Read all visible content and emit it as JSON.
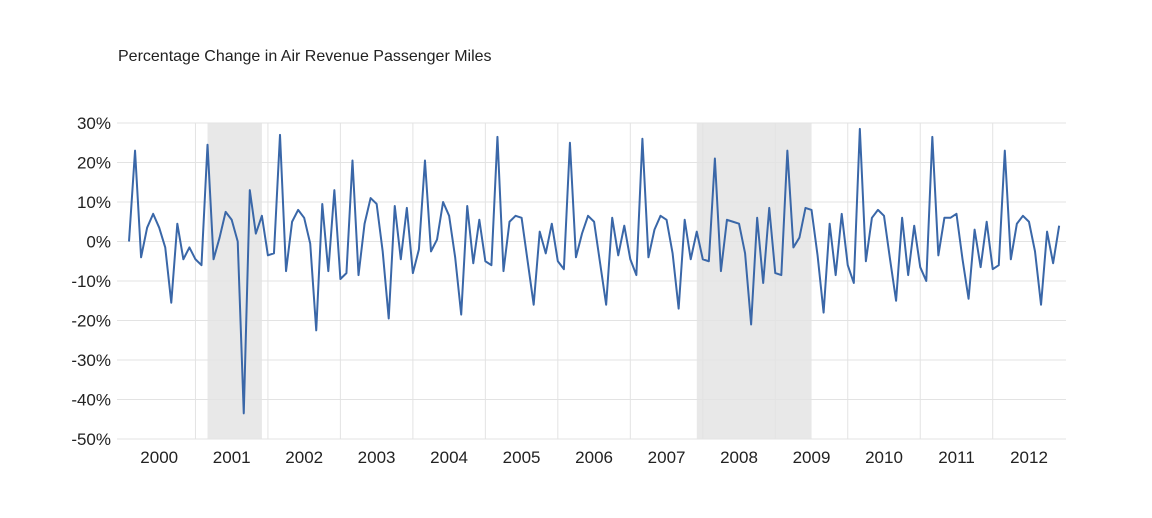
{
  "chart_data": {
    "type": "line",
    "title": "Percentage Change in Air Revenue Passenger Miles",
    "xlabel": "",
    "ylabel": "",
    "ylim": [
      -50,
      30
    ],
    "yticks": [
      "30%",
      "20%",
      "10%",
      "0%",
      "-10%",
      "-20%",
      "-30%",
      "-40%",
      "-50%"
    ],
    "ytick_values": [
      30,
      20,
      10,
      0,
      -10,
      -20,
      -30,
      -40,
      -50
    ],
    "x_start": "2000-02",
    "x_frequency": "monthly",
    "xtick_labels": [
      "2000",
      "2001",
      "2002",
      "2003",
      "2004",
      "2005",
      "2006",
      "2007",
      "2008",
      "2009",
      "2010",
      "2011",
      "2012"
    ],
    "grid": true,
    "legend": "none",
    "line_color": "#3a67a8",
    "shade_color": "#e8e8e8",
    "shaded_periods": [
      {
        "start": "2001-03",
        "end": "2001-11"
      },
      {
        "start": "2007-12",
        "end": "2009-06"
      }
    ],
    "series": [
      {
        "values": [
          0,
          23,
          -4,
          3.5,
          7,
          3.5,
          -1.5,
          -15.5,
          4.5,
          -4.5,
          -1.5,
          -4.5,
          -6,
          24.5,
          -4.5,
          1,
          7.5,
          5.5,
          0,
          -43.5,
          13,
          2,
          6.5,
          -3.5,
          -3,
          27,
          -7.5,
          5,
          8,
          6,
          -0.5,
          -22.5,
          9.5,
          -7.5,
          13,
          -9.5,
          -8,
          20.5,
          -8.5,
          4.5,
          11,
          9.5,
          -2.5,
          -19.5,
          9,
          -4.5,
          8.5,
          -8,
          -2,
          20.5,
          -2.5,
          0.5,
          10,
          6.5,
          -4,
          -18.5,
          9,
          -5.5,
          5.5,
          -5,
          -6,
          26.5,
          -7.5,
          5,
          6.5,
          6,
          -5,
          -16,
          2.5,
          -3,
          4.5,
          -5,
          -7,
          25,
          -4,
          2,
          6.5,
          5,
          -5.5,
          -16,
          6,
          -3.5,
          4,
          -4.5,
          -8.5,
          26,
          -4,
          3,
          6.5,
          5.5,
          -3,
          -17,
          5.5,
          -4.5,
          2.5,
          -4.5,
          -5,
          21,
          -7.5,
          5.5,
          5,
          4.5,
          -3,
          -21,
          6,
          -10.5,
          8.5,
          -8,
          -8.5,
          23,
          -1.5,
          1,
          8.5,
          8,
          -3.5,
          -18,
          4.5,
          -8.5,
          7,
          -6,
          -10.5,
          28.5,
          -5,
          6,
          8,
          6.5,
          -4.5,
          -15,
          6,
          -8.5,
          4,
          -6.5,
          -10,
          26.5,
          -3.5,
          6,
          6,
          7,
          -4.5,
          -14.5,
          3,
          -6.5,
          5,
          -7,
          -6,
          23,
          -4.5,
          4.5,
          6.5,
          5,
          -2.5,
          -16,
          2.5,
          -5.5,
          4
        ]
      }
    ]
  }
}
